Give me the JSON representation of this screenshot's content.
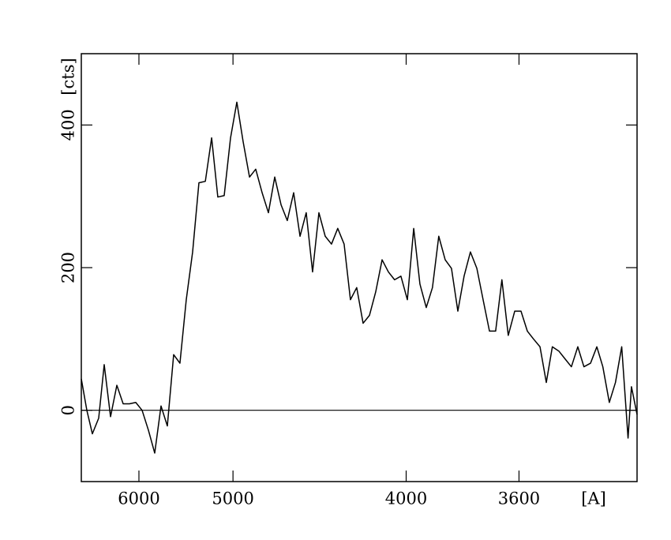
{
  "chart_data": {
    "type": "line",
    "xlabel": "[A]",
    "ylabel": "[cts]",
    "xscale": "inverse-square",
    "color": "#000000",
    "x": [
      7020,
      6899,
      6784,
      6659,
      6556,
      6443,
      6336,
      6234,
      6137,
      6045,
      5956,
      5871,
      5790,
      5712,
      5637,
      5565,
      5496,
      5429,
      5364,
      5302,
      5241,
      5183,
      5128,
      5073,
      5020,
      4969,
      4920,
      4871,
      4825,
      4779,
      4735,
      4692,
      4650,
      4610,
      4570,
      4531,
      4494,
      4457,
      4421,
      4386,
      4352,
      4319,
      4286,
      4254,
      4223,
      4192,
      4162,
      4133,
      4104,
      4076,
      4049,
      4022,
      3995,
      3969,
      3944,
      3919,
      3895,
      3871,
      3847,
      3824,
      3801,
      3779,
      3757,
      3735,
      3714,
      3693,
      3673,
      3653,
      3633,
      3613,
      3594,
      3575,
      3557,
      3538,
      3520,
      3503,
      3485,
      3468,
      3451,
      3434,
      3418,
      3401,
      3385,
      3370,
      3354,
      3339,
      3324,
      3309,
      3301,
      3288
    ],
    "series": [
      {
        "values": [
          44,
          0,
          -33,
          -11,
          64,
          -9,
          35,
          9,
          9,
          11,
          0,
          -28,
          -60,
          6,
          -22,
          78,
          66,
          155,
          222,
          319,
          321,
          382,
          299,
          301,
          382,
          432,
          377,
          327,
          338,
          305,
          277,
          327,
          288,
          266,
          305,
          244,
          277,
          194,
          277,
          244,
          233,
          255,
          233,
          155,
          172,
          122,
          133,
          166,
          211,
          194,
          183,
          188,
          155,
          255,
          177,
          144,
          172,
          244,
          211,
          199,
          139,
          188,
          222,
          199,
          155,
          111,
          111,
          183,
          105,
          139,
          139,
          111,
          100,
          89,
          39,
          89,
          83,
          72,
          61,
          89,
          61,
          66,
          89,
          61,
          11,
          39,
          89,
          -39,
          33,
          -6
        ]
      }
    ],
    "hline": 0,
    "xlim": [
      7020,
      3288
    ],
    "xticks": [
      6000,
      5000,
      4000,
      3600
    ],
    "ylim": [
      -100,
      500
    ],
    "yticks": [
      0,
      200,
      400
    ]
  }
}
